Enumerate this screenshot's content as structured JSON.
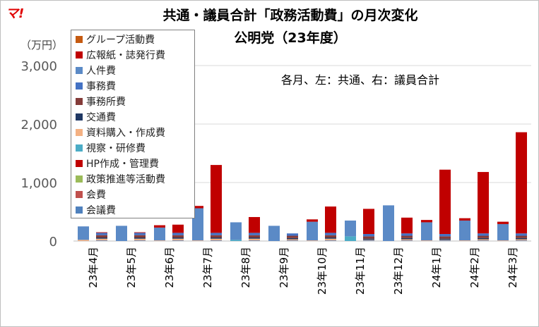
{
  "header": {
    "logo": "マ!",
    "title_line1": "共通・議員合計「政務活動費」の月次変化",
    "title_line2": "公明党（23年度）",
    "y_unit": "（万円）",
    "annotation": "各月、左：共通、右：議員合計"
  },
  "chart_data": {
    "type": "bar",
    "stacked": true,
    "grouping": "two bars per month (left: 共通, right: 議員合計)",
    "title": "共通・議員合計「政務活動費」の月次変化",
    "subtitle": "公明党（23年度）",
    "ylabel": "（万円）",
    "ylim": [
      0,
      3000
    ],
    "yticks": [
      0,
      1000,
      2000,
      3000
    ],
    "ytick_labels": [
      "0",
      "1,000",
      "2,000",
      "3,000"
    ],
    "grid": true,
    "legend_position": "top-left",
    "categories": [
      "23年4月",
      "23年5月",
      "23年6月",
      "23年7月",
      "23年8月",
      "23年9月",
      "23年10月",
      "23年11月",
      "23年12月",
      "24年1月",
      "24年2月",
      "24年3月"
    ],
    "series_order": [
      "会議費",
      "会費",
      "政策推進等活動費",
      "HP作成・管理費",
      "視察・研修費",
      "資料購入・作成費",
      "交通費",
      "事務所費",
      "事務費",
      "人件費",
      "広報紙・誌発行費",
      "グループ活動費"
    ],
    "colors": {
      "グループ活動費": "#c55a11",
      "広報紙・誌発行費": "#c00000",
      "人件費": "#5b8ac6",
      "事務費": "#4472c4",
      "事務所費": "#843c39",
      "交通費": "#203864",
      "資料購入・作成費": "#f4b183",
      "視察・研修費": "#4bacc6",
      "HP作成・管理費": "#c00000",
      "政策推進等活動費": "#9bbb59",
      "会費": "#c0504d",
      "会議費": "#4f81bd"
    },
    "kyotsu": [
      {
        "資料購入・作成費": 20,
        "人件費": 230
      },
      {
        "人件費": 260
      },
      {
        "資料購入・作成費": 10,
        "人件費": 220,
        "広報紙・誌発行費": 40
      },
      {
        "資料購入・作成費": 10,
        "人件費": 550,
        "広報紙・誌発行費": 40
      },
      {
        "視察・研修費": 20,
        "人件費": 300
      },
      {
        "人件費": 260
      },
      {
        "資料購入・作成費": 10,
        "人件費": 320,
        "広報紙・誌発行費": 40
      },
      {
        "視察・研修費": 80,
        "人件費": 270
      },
      {
        "人件費": 610
      },
      {
        "資料購入・作成費": 10,
        "人件費": 310,
        "広報紙・誌発行費": 40
      },
      {
        "資料購入・作成費": 10,
        "人件費": 340,
        "広報紙・誌発行費": 40
      },
      {
        "資料購入・作成費": 10,
        "人件費": 280,
        "広報紙・誌発行費": 40
      }
    ],
    "giin": [
      {
        "会議費": 10,
        "資料購入・作成費": 30,
        "交通費": 20,
        "事務所費": 40,
        "事務費": 40,
        "広報紙・誌発行費": 10
      },
      {
        "会議費": 10,
        "資料購入・作成費": 30,
        "交通費": 20,
        "事務所費": 40,
        "事務費": 40,
        "広報紙・誌発行費": 10
      },
      {
        "会議費": 10,
        "資料購入・作成費": 30,
        "交通費": 20,
        "事務所費": 40,
        "事務費": 40,
        "広報紙・誌発行費": 140
      },
      {
        "会議費": 10,
        "資料購入・作成費": 30,
        "交通費": 20,
        "事務所費": 40,
        "事務費": 40,
        "広報紙・誌発行費": 1160
      },
      {
        "会議費": 10,
        "資料購入・作成費": 30,
        "交通費": 20,
        "事務所費": 40,
        "事務費": 40,
        "広報紙・誌発行費": 270
      },
      {
        "会議費": 10,
        "資料購入・作成費": 20,
        "交通費": 20,
        "事務所費": 40,
        "事務費": 40
      },
      {
        "会議費": 10,
        "資料購入・作成費": 30,
        "交通費": 20,
        "事務所費": 40,
        "事務費": 40,
        "広報紙・誌発行費": 450
      },
      {
        "会議費": 10,
        "資料購入・作成費": 10,
        "交通費": 20,
        "事務所費": 40,
        "事務費": 40,
        "広報紙・誌発行費": 430
      },
      {
        "会議費": 10,
        "資料購入・作成費": 20,
        "交通費": 20,
        "事務所費": 40,
        "事務費": 40,
        "広報紙・誌発行費": 270
      },
      {
        "会議費": 10,
        "資料購入・作成費": 10,
        "交通費": 20,
        "事務所費": 40,
        "事務費": 40,
        "広報紙・誌発行費": 1100
      },
      {
        "会議費": 10,
        "資料購入・作成費": 20,
        "交通費": 20,
        "事務所費": 40,
        "事務費": 40,
        "広報紙・誌発行費": 1050
      },
      {
        "会議費": 10,
        "資料購入・作成費": 20,
        "交通費": 20,
        "事務所費": 40,
        "事務費": 40,
        "広報紙・誌発行費": 1730
      }
    ]
  }
}
